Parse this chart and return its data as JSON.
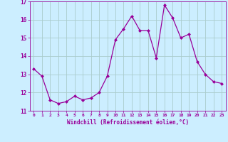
{
  "x": [
    0,
    1,
    2,
    3,
    4,
    5,
    6,
    7,
    8,
    9,
    10,
    11,
    12,
    13,
    14,
    15,
    16,
    17,
    18,
    19,
    20,
    21,
    22,
    23
  ],
  "y": [
    13.3,
    12.9,
    11.6,
    11.4,
    11.5,
    11.8,
    11.6,
    11.7,
    12.0,
    12.9,
    14.9,
    15.5,
    16.2,
    15.4,
    15.4,
    13.9,
    16.8,
    16.1,
    15.0,
    15.2,
    13.7,
    13.0,
    12.6,
    12.5
  ],
  "line_color": "#990099",
  "marker": "D",
  "marker_size": 2.0,
  "bg_color": "#cceeff",
  "grid_color": "#aacccc",
  "xlabel": "Windchill (Refroidissement éolien,°C)",
  "xlabel_color": "#990099",
  "tick_color": "#990099",
  "xlim": [
    -0.5,
    23.5
  ],
  "ylim": [
    11,
    17
  ],
  "yticks": [
    11,
    12,
    13,
    14,
    15,
    16,
    17
  ],
  "xticks": [
    0,
    1,
    2,
    3,
    4,
    5,
    6,
    7,
    8,
    9,
    10,
    11,
    12,
    13,
    14,
    15,
    16,
    17,
    18,
    19,
    20,
    21,
    22,
    23
  ]
}
